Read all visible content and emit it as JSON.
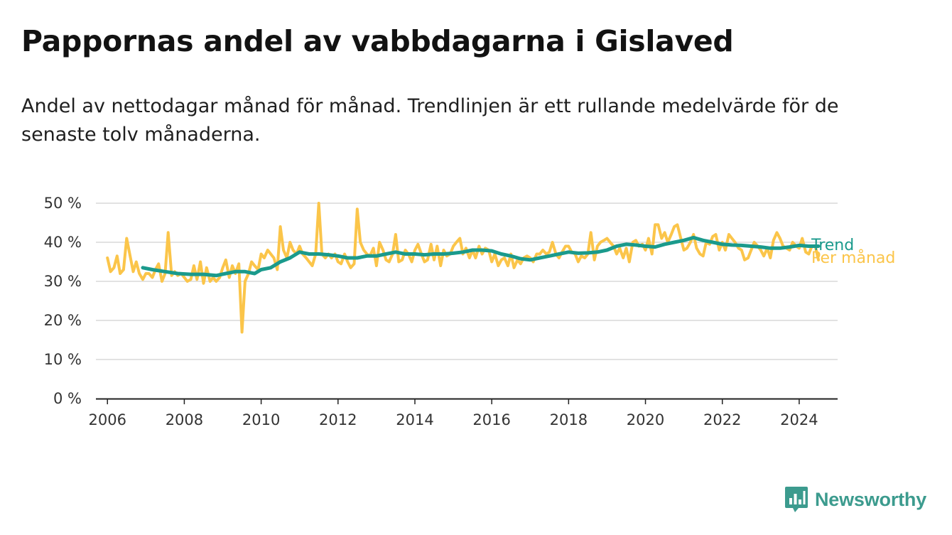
{
  "title": "Pappornas andel av vabbdagarna i Gislaved",
  "subtitle": "Andel av nettodagar månad för månad. Trendlinjen är ett rullande medelvärde för de senaste tolv månaderna.",
  "brand": {
    "name": "Newsworthy",
    "logo_icon": "bar-chart-speech-bubble-icon",
    "color": "#3c9b8e"
  },
  "chart_data": {
    "type": "line",
    "x_range": [
      2005.7,
      2025.0
    ],
    "ylim": [
      0,
      50
    ],
    "y_ticks": [
      0,
      10,
      20,
      30,
      40,
      50
    ],
    "y_tick_labels": [
      "0 %",
      "10 %",
      "20 %",
      "30 %",
      "40 %",
      "50 %"
    ],
    "x_ticks": [
      2006,
      2008,
      2010,
      2012,
      2014,
      2016,
      2018,
      2020,
      2022,
      2024
    ],
    "x_tick_labels": [
      "2006",
      "2008",
      "2010",
      "2012",
      "2014",
      "2016",
      "2018",
      "2020",
      "2022",
      "2024"
    ],
    "grid": true,
    "series": [
      {
        "name": "Per månad",
        "color": "#fbc54a",
        "points": [
          [
            2006.0,
            36
          ],
          [
            2006.08,
            32.5
          ],
          [
            2006.17,
            33.5
          ],
          [
            2006.25,
            36.5
          ],
          [
            2006.33,
            32
          ],
          [
            2006.42,
            33
          ],
          [
            2006.5,
            41
          ],
          [
            2006.58,
            37
          ],
          [
            2006.67,
            32.5
          ],
          [
            2006.75,
            35
          ],
          [
            2006.83,
            32
          ],
          [
            2006.92,
            30.5
          ],
          [
            2007.0,
            32
          ],
          [
            2007.08,
            32
          ],
          [
            2007.17,
            31
          ],
          [
            2007.25,
            33
          ],
          [
            2007.33,
            34.5
          ],
          [
            2007.42,
            30
          ],
          [
            2007.5,
            32
          ],
          [
            2007.58,
            42.5
          ],
          [
            2007.67,
            31.5
          ],
          [
            2007.75,
            32.5
          ],
          [
            2007.83,
            31.5
          ],
          [
            2007.92,
            32
          ],
          [
            2008.0,
            31
          ],
          [
            2008.08,
            30
          ],
          [
            2008.17,
            30.5
          ],
          [
            2008.25,
            34
          ],
          [
            2008.33,
            30.5
          ],
          [
            2008.42,
            35
          ],
          [
            2008.5,
            29.5
          ],
          [
            2008.58,
            33.5
          ],
          [
            2008.67,
            30
          ],
          [
            2008.75,
            31
          ],
          [
            2008.83,
            30
          ],
          [
            2008.92,
            31
          ],
          [
            2009.0,
            33.5
          ],
          [
            2009.08,
            35.5
          ],
          [
            2009.17,
            31
          ],
          [
            2009.25,
            34
          ],
          [
            2009.33,
            32
          ],
          [
            2009.42,
            34.5
          ],
          [
            2009.5,
            17
          ],
          [
            2009.58,
            30
          ],
          [
            2009.67,
            32
          ],
          [
            2009.75,
            35
          ],
          [
            2009.83,
            34
          ],
          [
            2009.92,
            33
          ],
          [
            2010.0,
            37
          ],
          [
            2010.08,
            36
          ],
          [
            2010.17,
            38
          ],
          [
            2010.25,
            37
          ],
          [
            2010.33,
            36
          ],
          [
            2010.42,
            33
          ],
          [
            2010.5,
            44
          ],
          [
            2010.58,
            38
          ],
          [
            2010.67,
            36
          ],
          [
            2010.75,
            40
          ],
          [
            2010.83,
            38
          ],
          [
            2010.92,
            37
          ],
          [
            2011.0,
            39
          ],
          [
            2011.08,
            37
          ],
          [
            2011.17,
            36
          ],
          [
            2011.25,
            35
          ],
          [
            2011.33,
            34
          ],
          [
            2011.42,
            37
          ],
          [
            2011.5,
            50
          ],
          [
            2011.58,
            37
          ],
          [
            2011.67,
            36
          ],
          [
            2011.75,
            37
          ],
          [
            2011.83,
            36
          ],
          [
            2011.92,
            37
          ],
          [
            2012.0,
            35
          ],
          [
            2012.08,
            34.5
          ],
          [
            2012.17,
            37
          ],
          [
            2012.25,
            35
          ],
          [
            2012.33,
            33.5
          ],
          [
            2012.42,
            34.5
          ],
          [
            2012.5,
            48.5
          ],
          [
            2012.58,
            40
          ],
          [
            2012.67,
            38
          ],
          [
            2012.75,
            37
          ],
          [
            2012.83,
            36.5
          ],
          [
            2012.92,
            38.5
          ],
          [
            2013.0,
            34
          ],
          [
            2013.08,
            40
          ],
          [
            2013.17,
            38
          ],
          [
            2013.25,
            35.5
          ],
          [
            2013.33,
            35
          ],
          [
            2013.42,
            37
          ],
          [
            2013.5,
            42
          ],
          [
            2013.58,
            35
          ],
          [
            2013.67,
            35.5
          ],
          [
            2013.75,
            38
          ],
          [
            2013.83,
            37
          ],
          [
            2013.92,
            35
          ],
          [
            2014.0,
            38
          ],
          [
            2014.08,
            39.5
          ],
          [
            2014.17,
            37
          ],
          [
            2014.25,
            35
          ],
          [
            2014.33,
            35.5
          ],
          [
            2014.42,
            39.5
          ],
          [
            2014.5,
            35.5
          ],
          [
            2014.58,
            39
          ],
          [
            2014.67,
            34
          ],
          [
            2014.75,
            38
          ],
          [
            2014.83,
            36.5
          ],
          [
            2014.92,
            37
          ],
          [
            2015.0,
            39
          ],
          [
            2015.08,
            40
          ],
          [
            2015.17,
            41
          ],
          [
            2015.25,
            37
          ],
          [
            2015.33,
            38.5
          ],
          [
            2015.42,
            36
          ],
          [
            2015.5,
            38
          ],
          [
            2015.58,
            36
          ],
          [
            2015.67,
            39
          ],
          [
            2015.75,
            37
          ],
          [
            2015.83,
            38.5
          ],
          [
            2015.92,
            38
          ],
          [
            2016.0,
            35
          ],
          [
            2016.08,
            37
          ],
          [
            2016.17,
            34
          ],
          [
            2016.25,
            35.5
          ],
          [
            2016.33,
            36
          ],
          [
            2016.42,
            34
          ],
          [
            2016.5,
            37
          ],
          [
            2016.58,
            33.5
          ],
          [
            2016.67,
            35.5
          ],
          [
            2016.75,
            34.5
          ],
          [
            2016.83,
            36
          ],
          [
            2016.92,
            36.5
          ],
          [
            2017.0,
            36
          ],
          [
            2017.08,
            35
          ],
          [
            2017.17,
            37
          ],
          [
            2017.25,
            37
          ],
          [
            2017.33,
            38
          ],
          [
            2017.42,
            37
          ],
          [
            2017.5,
            37.5
          ],
          [
            2017.58,
            40
          ],
          [
            2017.67,
            37
          ],
          [
            2017.75,
            36
          ],
          [
            2017.83,
            37.5
          ],
          [
            2017.92,
            39
          ],
          [
            2018.0,
            39
          ],
          [
            2018.08,
            37.5
          ],
          [
            2018.17,
            37
          ],
          [
            2018.25,
            35
          ],
          [
            2018.33,
            36.5
          ],
          [
            2018.42,
            36
          ],
          [
            2018.5,
            37
          ],
          [
            2018.58,
            42.5
          ],
          [
            2018.67,
            35.5
          ],
          [
            2018.75,
            39
          ],
          [
            2018.83,
            40
          ],
          [
            2018.92,
            40.5
          ],
          [
            2019.0,
            41
          ],
          [
            2019.08,
            40
          ],
          [
            2019.17,
            39
          ],
          [
            2019.25,
            37
          ],
          [
            2019.33,
            38.5
          ],
          [
            2019.42,
            36
          ],
          [
            2019.5,
            38.5
          ],
          [
            2019.58,
            35
          ],
          [
            2019.67,
            40
          ],
          [
            2019.75,
            40.5
          ],
          [
            2019.83,
            39
          ],
          [
            2019.92,
            39.5
          ],
          [
            2020.0,
            38
          ],
          [
            2020.08,
            41
          ],
          [
            2020.17,
            37
          ],
          [
            2020.25,
            44.5
          ],
          [
            2020.33,
            44.5
          ],
          [
            2020.42,
            41
          ],
          [
            2020.5,
            42.5
          ],
          [
            2020.58,
            40
          ],
          [
            2020.67,
            42
          ],
          [
            2020.75,
            44
          ],
          [
            2020.83,
            44.5
          ],
          [
            2020.92,
            41
          ],
          [
            2021.0,
            38
          ],
          [
            2021.08,
            38.5
          ],
          [
            2021.17,
            40
          ],
          [
            2021.25,
            42
          ],
          [
            2021.33,
            38.5
          ],
          [
            2021.42,
            37
          ],
          [
            2021.5,
            36.5
          ],
          [
            2021.58,
            40
          ],
          [
            2021.67,
            39.5
          ],
          [
            2021.75,
            41.5
          ],
          [
            2021.83,
            42
          ],
          [
            2021.92,
            38
          ],
          [
            2022.0,
            40
          ],
          [
            2022.08,
            38
          ],
          [
            2022.17,
            42
          ],
          [
            2022.25,
            41
          ],
          [
            2022.33,
            40
          ],
          [
            2022.42,
            38.5
          ],
          [
            2022.5,
            38
          ],
          [
            2022.58,
            35.5
          ],
          [
            2022.67,
            36
          ],
          [
            2022.75,
            38
          ],
          [
            2022.83,
            40
          ],
          [
            2022.92,
            39
          ],
          [
            2023.0,
            38
          ],
          [
            2023.08,
            36.5
          ],
          [
            2023.17,
            38.5
          ],
          [
            2023.25,
            36
          ],
          [
            2023.33,
            40.5
          ],
          [
            2023.42,
            42.5
          ],
          [
            2023.5,
            41
          ],
          [
            2023.58,
            39
          ],
          [
            2023.67,
            38.5
          ],
          [
            2023.75,
            38
          ],
          [
            2023.83,
            40
          ],
          [
            2023.92,
            39
          ],
          [
            2024.0,
            38.5
          ],
          [
            2024.08,
            41
          ],
          [
            2024.17,
            37.5
          ],
          [
            2024.25,
            37
          ],
          [
            2024.33,
            39
          ],
          [
            2024.42,
            39
          ],
          [
            2024.5,
            35.5
          ]
        ]
      },
      {
        "name": "Trend",
        "color": "#1a9a8c",
        "points": [
          [
            2006.92,
            33.5
          ],
          [
            2007.17,
            33
          ],
          [
            2007.5,
            32.5
          ],
          [
            2007.83,
            32
          ],
          [
            2008.17,
            31.8
          ],
          [
            2008.5,
            31.8
          ],
          [
            2008.83,
            31.5
          ],
          [
            2009.08,
            32
          ],
          [
            2009.33,
            32.5
          ],
          [
            2009.58,
            32.5
          ],
          [
            2009.83,
            32
          ],
          [
            2010.0,
            33
          ],
          [
            2010.25,
            33.5
          ],
          [
            2010.5,
            35
          ],
          [
            2010.75,
            36
          ],
          [
            2011.0,
            37.5
          ],
          [
            2011.25,
            37
          ],
          [
            2011.5,
            37
          ],
          [
            2011.75,
            36.8
          ],
          [
            2012.0,
            36.5
          ],
          [
            2012.25,
            36
          ],
          [
            2012.5,
            36
          ],
          [
            2012.75,
            36.5
          ],
          [
            2013.0,
            36.5
          ],
          [
            2013.25,
            37
          ],
          [
            2013.5,
            37.5
          ],
          [
            2013.75,
            37
          ],
          [
            2014.0,
            37
          ],
          [
            2014.25,
            36.8
          ],
          [
            2014.5,
            37
          ],
          [
            2014.75,
            37
          ],
          [
            2015.0,
            37.2
          ],
          [
            2015.25,
            37.5
          ],
          [
            2015.5,
            38
          ],
          [
            2015.75,
            38
          ],
          [
            2016.0,
            37.8
          ],
          [
            2016.25,
            37
          ],
          [
            2016.5,
            36.5
          ],
          [
            2016.75,
            35.8
          ],
          [
            2017.0,
            35.5
          ],
          [
            2017.25,
            36
          ],
          [
            2017.5,
            36.5
          ],
          [
            2017.75,
            37
          ],
          [
            2018.0,
            37.5
          ],
          [
            2018.25,
            37.2
          ],
          [
            2018.5,
            37.3
          ],
          [
            2018.75,
            37.5
          ],
          [
            2019.0,
            38
          ],
          [
            2019.25,
            39
          ],
          [
            2019.5,
            39.5
          ],
          [
            2019.75,
            39.3
          ],
          [
            2020.0,
            39
          ],
          [
            2020.25,
            38.8
          ],
          [
            2020.5,
            39.5
          ],
          [
            2020.75,
            40
          ],
          [
            2021.0,
            40.5
          ],
          [
            2021.25,
            41.2
          ],
          [
            2021.5,
            40.5
          ],
          [
            2021.75,
            40
          ],
          [
            2022.0,
            39.5
          ],
          [
            2022.25,
            39.3
          ],
          [
            2022.5,
            39.2
          ],
          [
            2022.75,
            39
          ],
          [
            2023.0,
            38.8
          ],
          [
            2023.25,
            38.5
          ],
          [
            2023.5,
            38.5
          ],
          [
            2023.75,
            38.8
          ],
          [
            2024.0,
            39.2
          ],
          [
            2024.25,
            39
          ],
          [
            2024.5,
            39
          ]
        ]
      }
    ]
  }
}
